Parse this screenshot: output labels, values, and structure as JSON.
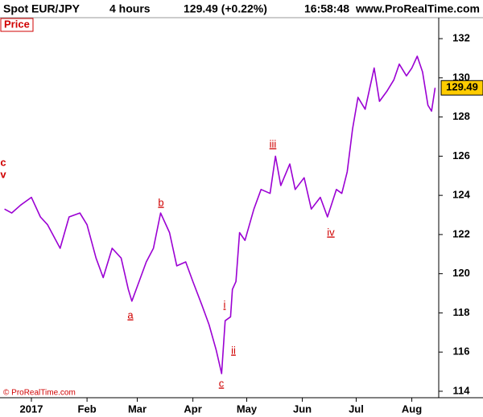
{
  "header": {
    "symbol": "Spot EUR/JPY",
    "period": "4 hours",
    "quote": "129.49 (+0.22%)",
    "time": "16:58:48",
    "site": "www.ProRealTime.com"
  },
  "chart_data": {
    "type": "line",
    "title": "Price",
    "color": "#9b00d3",
    "x": [
      -15,
      -11,
      -6,
      0,
      5,
      9,
      16,
      21,
      27,
      31,
      36,
      40,
      45,
      50,
      54,
      56,
      60,
      64,
      68,
      72,
      77,
      81,
      86,
      90,
      95,
      99,
      103,
      106,
      108,
      111,
      112,
      114,
      116,
      119,
      124,
      128,
      133,
      136,
      139,
      144,
      147,
      152,
      156,
      161,
      165,
      170,
      173,
      176,
      179,
      182,
      186,
      191,
      194,
      198,
      202,
      205,
      209,
      212,
      215,
      218,
      221,
      223,
      225
    ],
    "values": [
      123.3,
      123.1,
      123.5,
      123.9,
      122.9,
      122.5,
      121.3,
      122.9,
      123.1,
      122.5,
      120.8,
      119.8,
      121.3,
      120.8,
      119.2,
      118.6,
      119.6,
      120.6,
      121.3,
      123.1,
      122.1,
      120.4,
      120.6,
      119.6,
      118.4,
      117.4,
      116.1,
      114.9,
      117.6,
      117.8,
      119.2,
      119.6,
      122.1,
      121.7,
      123.3,
      124.3,
      124.1,
      126.0,
      124.5,
      125.6,
      124.3,
      124.9,
      123.3,
      123.9,
      122.9,
      124.3,
      124.1,
      125.2,
      127.4,
      129.0,
      128.4,
      130.5,
      128.8,
      129.3,
      129.9,
      130.7,
      130.1,
      130.5,
      131.1,
      130.3,
      128.6,
      128.3,
      129.49
    ],
    "xlim": [
      -17.5,
      227
    ],
    "xticks": [
      {
        "value": 0,
        "label": "2017"
      },
      {
        "value": 31,
        "label": "Feb"
      },
      {
        "value": 59,
        "label": "Mar"
      },
      {
        "value": 90,
        "label": "Apr"
      },
      {
        "value": 120,
        "label": "May"
      },
      {
        "value": 151,
        "label": "Jun"
      },
      {
        "value": 181,
        "label": "Jul"
      },
      {
        "value": 212,
        "label": "Aug"
      }
    ],
    "ylim": [
      113.67,
      133.07
    ],
    "yticks": [
      114,
      116,
      118,
      120,
      122,
      124,
      126,
      128,
      130,
      132
    ],
    "annotations": [
      "c",
      "v",
      "a",
      "b",
      "c",
      "i",
      "ii",
      "iii",
      "iv"
    ],
    "copyright": "© ProRealTime.com"
  }
}
